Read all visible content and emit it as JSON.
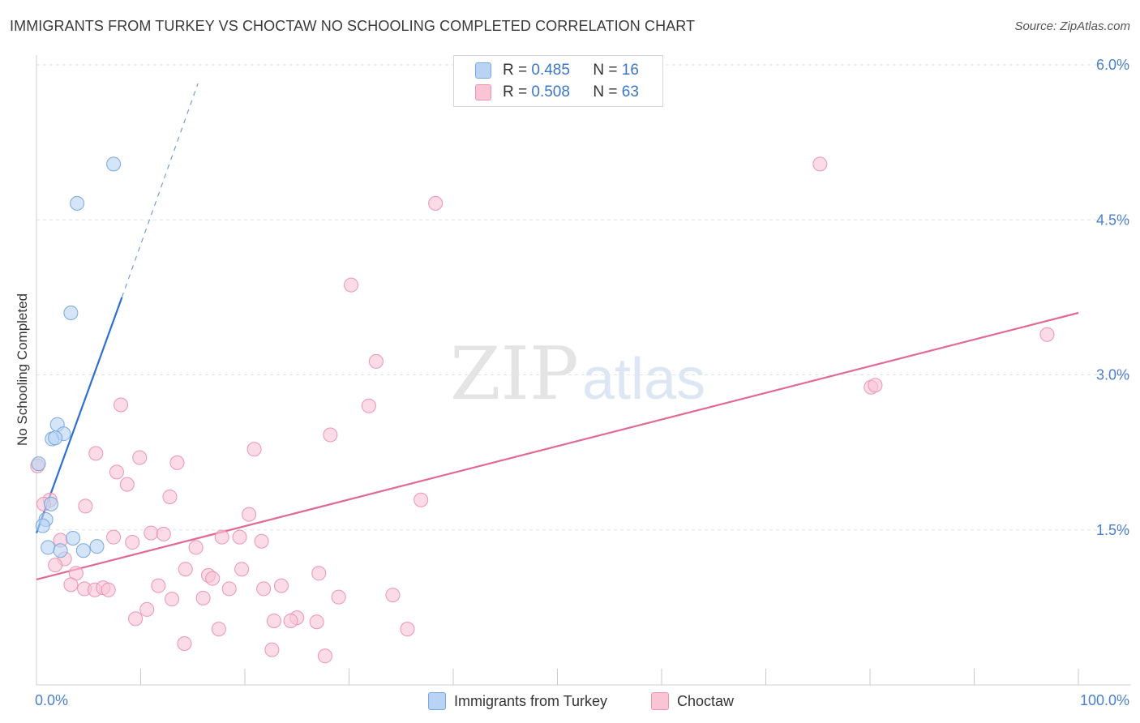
{
  "title": "IMMIGRANTS FROM TURKEY VS CHOCTAW NO SCHOOLING COMPLETED CORRELATION CHART",
  "source": "Source: ZipAtlas.com",
  "watermark": {
    "zip": "ZIP",
    "atlas": "atlas"
  },
  "legend_top": {
    "r_label": "R =",
    "n_label": "N =",
    "rows": [
      {
        "series": "Immigrants from Turkey",
        "r": "0.485",
        "n": "16",
        "fill": "#b8d3f3",
        "stroke": "#7aa7e0"
      },
      {
        "series": "Choctaw",
        "r": "0.508",
        "n": "63",
        "fill": "#f9c5d5",
        "stroke": "#ec94b1"
      }
    ]
  },
  "legend_bottom": [
    {
      "label": "Immigrants from Turkey",
      "fill": "#b8d3f3",
      "stroke": "#7aa7e0"
    },
    {
      "label": "Choctaw",
      "fill": "#f9c5d5",
      "stroke": "#ec94b1"
    }
  ],
  "chart_data": {
    "type": "scatter",
    "title": "IMMIGRANTS FROM TURKEY VS CHOCTAW NO SCHOOLING COMPLETED CORRELATION CHART",
    "xlabel": "",
    "ylabel": "No Schooling Completed",
    "xlim": [
      0,
      100
    ],
    "ylim": [
      0,
      6.0
    ],
    "x_tick_labels": [
      {
        "value": 0,
        "label": "0.0%"
      },
      {
        "value": 100,
        "label": "100.0%"
      }
    ],
    "x_minor_ticks": [
      10,
      20,
      30,
      40,
      50,
      60,
      70,
      80,
      90,
      100
    ],
    "y_ticks": [
      {
        "value": 1.5,
        "label": "1.5%"
      },
      {
        "value": 3.0,
        "label": "3.0%"
      },
      {
        "value": 4.5,
        "label": "4.5%"
      },
      {
        "value": 6.0,
        "label": "6.0%"
      }
    ],
    "grid": true,
    "series": [
      {
        "name": "Immigrants from Turkey",
        "color": "#7aa7e0",
        "fill": "#b8d3f3",
        "line_color": "#2f6fd0",
        "trend": {
          "x0": 0,
          "y0": 1.47,
          "x1": 8.2,
          "y1": 3.75,
          "dash_to_x": 15.5,
          "dash_to_y": 5.82
        },
        "points": [
          {
            "x": 7.4,
            "y": 5.04
          },
          {
            "x": 3.9,
            "y": 4.66
          },
          {
            "x": 3.3,
            "y": 3.6
          },
          {
            "x": 2.0,
            "y": 2.52
          },
          {
            "x": 1.5,
            "y": 2.38
          },
          {
            "x": 2.6,
            "y": 2.43
          },
          {
            "x": 1.8,
            "y": 2.39
          },
          {
            "x": 0.2,
            "y": 2.14
          },
          {
            "x": 1.4,
            "y": 1.75
          },
          {
            "x": 0.9,
            "y": 1.6
          },
          {
            "x": 0.6,
            "y": 1.54
          },
          {
            "x": 3.5,
            "y": 1.42
          },
          {
            "x": 1.1,
            "y": 1.33
          },
          {
            "x": 2.3,
            "y": 1.3
          },
          {
            "x": 4.5,
            "y": 1.3
          },
          {
            "x": 5.8,
            "y": 1.34
          }
        ]
      },
      {
        "name": "Choctaw",
        "color": "#ec94b1",
        "fill": "#f9c5d5",
        "line_color": "#e06a94",
        "trend": {
          "x0": 0,
          "y0": 1.02,
          "x1": 100,
          "y1": 3.6
        },
        "points": [
          {
            "x": 75.2,
            "y": 5.04
          },
          {
            "x": 38.3,
            "y": 4.66
          },
          {
            "x": 30.2,
            "y": 3.87
          },
          {
            "x": 97.0,
            "y": 3.39
          },
          {
            "x": 32.6,
            "y": 3.13
          },
          {
            "x": 80.1,
            "y": 2.88
          },
          {
            "x": 80.5,
            "y": 2.9
          },
          {
            "x": 8.1,
            "y": 2.71
          },
          {
            "x": 31.9,
            "y": 2.7
          },
          {
            "x": 28.2,
            "y": 2.42
          },
          {
            "x": 20.9,
            "y": 2.28
          },
          {
            "x": 5.7,
            "y": 2.24
          },
          {
            "x": 9.9,
            "y": 2.2
          },
          {
            "x": 13.5,
            "y": 2.15
          },
          {
            "x": 0.1,
            "y": 2.12
          },
          {
            "x": 7.7,
            "y": 2.06
          },
          {
            "x": 8.7,
            "y": 1.94
          },
          {
            "x": 12.8,
            "y": 1.82
          },
          {
            "x": 1.3,
            "y": 1.79
          },
          {
            "x": 0.7,
            "y": 1.75
          },
          {
            "x": 36.9,
            "y": 1.79
          },
          {
            "x": 4.7,
            "y": 1.73
          },
          {
            "x": 20.4,
            "y": 1.65
          },
          {
            "x": 11.0,
            "y": 1.47
          },
          {
            "x": 12.2,
            "y": 1.46
          },
          {
            "x": 7.4,
            "y": 1.43
          },
          {
            "x": 17.8,
            "y": 1.43
          },
          {
            "x": 19.5,
            "y": 1.43
          },
          {
            "x": 21.6,
            "y": 1.39
          },
          {
            "x": 9.2,
            "y": 1.38
          },
          {
            "x": 2.3,
            "y": 1.4
          },
          {
            "x": 15.3,
            "y": 1.33
          },
          {
            "x": 2.7,
            "y": 1.22
          },
          {
            "x": 1.8,
            "y": 1.16
          },
          {
            "x": 14.3,
            "y": 1.12
          },
          {
            "x": 19.7,
            "y": 1.12
          },
          {
            "x": 3.8,
            "y": 1.08
          },
          {
            "x": 16.5,
            "y": 1.06
          },
          {
            "x": 16.9,
            "y": 1.03
          },
          {
            "x": 27.1,
            "y": 1.08
          },
          {
            "x": 3.3,
            "y": 0.97
          },
          {
            "x": 11.7,
            "y": 0.96
          },
          {
            "x": 23.5,
            "y": 0.96
          },
          {
            "x": 4.6,
            "y": 0.93
          },
          {
            "x": 5.6,
            "y": 0.92
          },
          {
            "x": 6.4,
            "y": 0.94
          },
          {
            "x": 6.9,
            "y": 0.92
          },
          {
            "x": 18.5,
            "y": 0.93
          },
          {
            "x": 21.8,
            "y": 0.93
          },
          {
            "x": 13.0,
            "y": 0.83
          },
          {
            "x": 16.0,
            "y": 0.84
          },
          {
            "x": 29.0,
            "y": 0.85
          },
          {
            "x": 34.2,
            "y": 0.87
          },
          {
            "x": 10.6,
            "y": 0.73
          },
          {
            "x": 9.5,
            "y": 0.64
          },
          {
            "x": 22.8,
            "y": 0.62
          },
          {
            "x": 25.0,
            "y": 0.65
          },
          {
            "x": 24.4,
            "y": 0.62
          },
          {
            "x": 26.9,
            "y": 0.61
          },
          {
            "x": 17.5,
            "y": 0.54
          },
          {
            "x": 35.6,
            "y": 0.54
          },
          {
            "x": 14.2,
            "y": 0.4
          },
          {
            "x": 22.6,
            "y": 0.34
          },
          {
            "x": 27.7,
            "y": 0.28
          }
        ]
      }
    ]
  }
}
